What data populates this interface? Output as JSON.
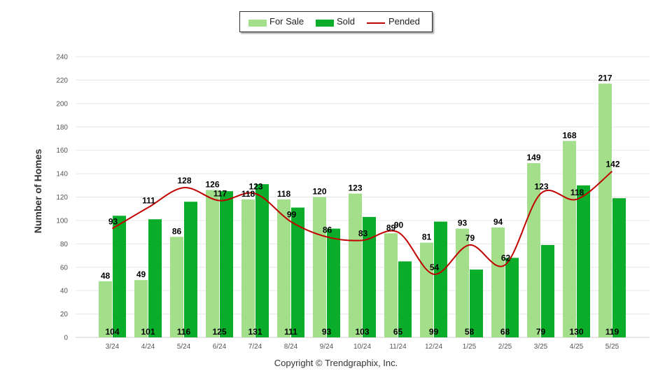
{
  "legend": {
    "for_sale": "For Sale",
    "sold": "Sold",
    "pended": "Pended"
  },
  "copyright": "Copyright © Trendgraphix, Inc.",
  "colors": {
    "for_sale": "#a3df8a",
    "sold": "#0aad2a",
    "pended": "#c00000",
    "grid": "#e6e6e6",
    "axis_text": "#555555"
  },
  "chart_data": {
    "type": "bar",
    "categories": [
      "3/24",
      "4/24",
      "5/24",
      "6/24",
      "7/24",
      "8/24",
      "9/24",
      "10/24",
      "11/24",
      "12/24",
      "1/25",
      "2/25",
      "3/25",
      "4/25",
      "5/25"
    ],
    "series": [
      {
        "name": "For Sale",
        "type": "bar",
        "values": [
          48,
          49,
          86,
          126,
          118,
          118,
          120,
          123,
          89,
          81,
          93,
          94,
          149,
          168,
          217
        ]
      },
      {
        "name": "Sold",
        "type": "bar",
        "values": [
          104,
          101,
          116,
          125,
          131,
          111,
          93,
          103,
          65,
          99,
          58,
          68,
          79,
          130,
          119
        ]
      },
      {
        "name": "Pended",
        "type": "line",
        "values": [
          93,
          111,
          128,
          117,
          123,
          99,
          86,
          83,
          90,
          54,
          79,
          62,
          123,
          118,
          142
        ]
      }
    ],
    "ylabel": "Number of Homes",
    "xlabel": "",
    "ylim": [
      0,
      240
    ],
    "yticks": [
      0,
      20,
      40,
      60,
      80,
      100,
      120,
      140,
      160,
      180,
      200,
      220,
      240
    ],
    "grid": true,
    "legend_position": "top-center"
  }
}
